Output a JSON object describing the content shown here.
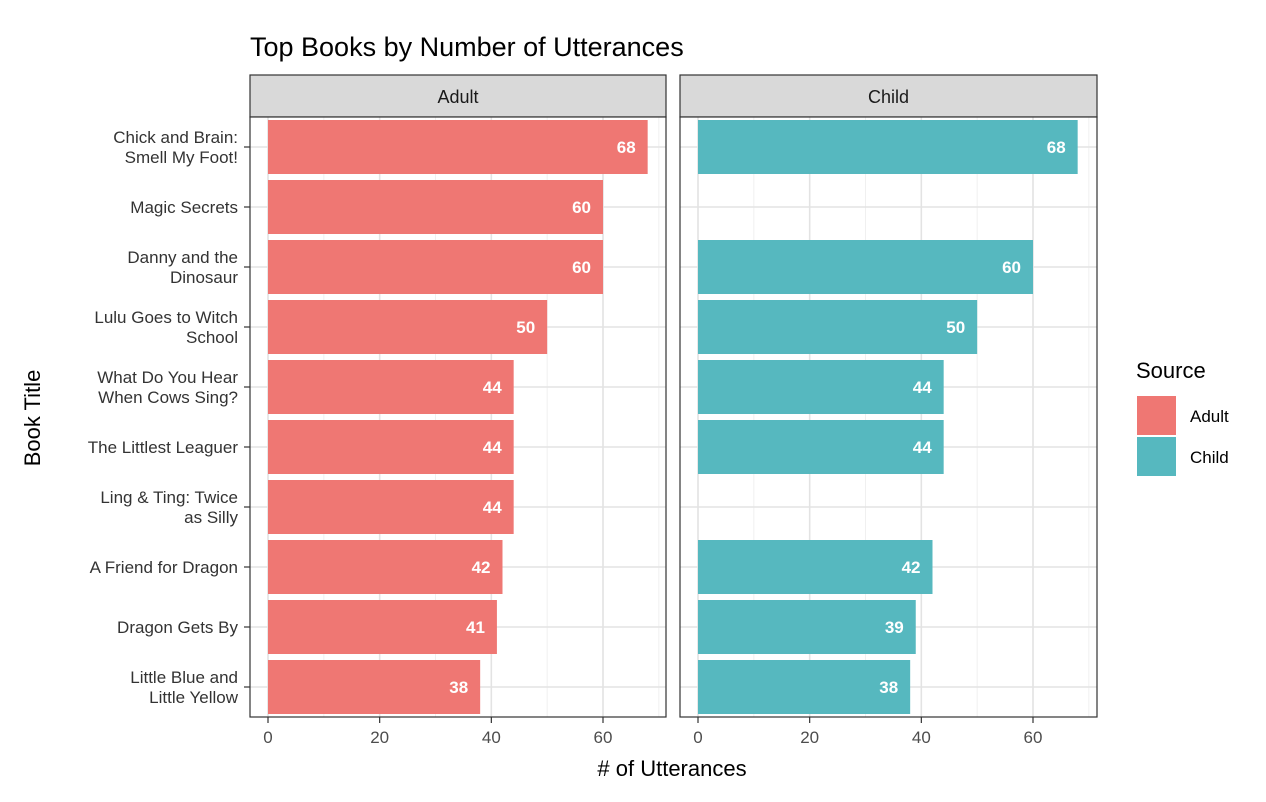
{
  "chart_data": {
    "type": "bar",
    "orientation": "horizontal",
    "title": "Top Books by Number of Utterances",
    "xlabel": "# of Utterances",
    "ylabel": "Book Title",
    "xlim": [
      0,
      70
    ],
    "x_ticks": [
      0,
      20,
      40,
      60
    ],
    "grid": true,
    "categories": [
      [
        "Chick and Brain:",
        "Smell My Foot!"
      ],
      [
        "Magic Secrets"
      ],
      [
        "Danny and the",
        "Dinosaur"
      ],
      [
        "Lulu Goes to Witch",
        "School"
      ],
      [
        "What Do You Hear",
        "When Cows Sing?"
      ],
      [
        "The Littlest Leaguer"
      ],
      [
        "Ling & Ting: Twice",
        "as Silly"
      ],
      [
        "A Friend for Dragon"
      ],
      [
        "Dragon Gets By"
      ],
      [
        "Little Blue and",
        "Little Yellow"
      ]
    ],
    "facets": [
      {
        "name": "Adult",
        "color": "#ef7773",
        "values": [
          68,
          60,
          60,
          50,
          44,
          44,
          44,
          42,
          41,
          38
        ]
      },
      {
        "name": "Child",
        "color": "#56b8bf",
        "values": [
          68,
          null,
          60,
          50,
          44,
          44,
          null,
          42,
          39,
          38
        ]
      }
    ],
    "legend": {
      "title": "Source",
      "position": "right",
      "entries": [
        {
          "label": "Adult",
          "color": "#ef7773"
        },
        {
          "label": "Child",
          "color": "#56b8bf"
        }
      ]
    }
  }
}
